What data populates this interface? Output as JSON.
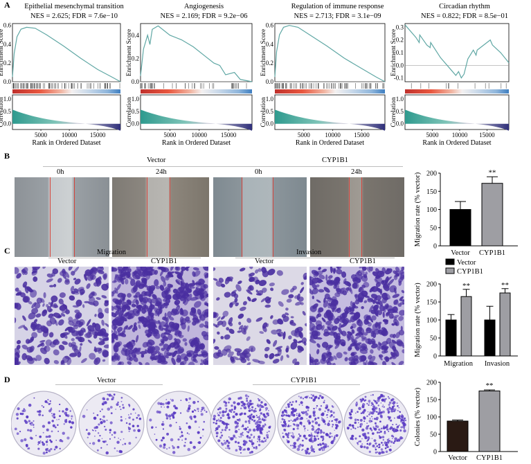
{
  "panels": {
    "A": "A",
    "B": "B",
    "C": "C",
    "D": "D"
  },
  "gsea": [
    {
      "title": "Epithelial mesenchymal transition",
      "stat": "NES = 2.625; FDR = 7.6e−10",
      "es_ticks": [
        "0.6",
        "0.4",
        "0.2",
        "0.0"
      ],
      "es_curve": [
        [
          0,
          0.05
        ],
        [
          300,
          0.3
        ],
        [
          800,
          0.48
        ],
        [
          1500,
          0.56
        ],
        [
          2500,
          0.58
        ],
        [
          4000,
          0.57
        ],
        [
          6000,
          0.5
        ],
        [
          9000,
          0.38
        ],
        [
          12000,
          0.25
        ],
        [
          15000,
          0.13
        ],
        [
          17500,
          0.05
        ],
        [
          19000,
          0.0
        ]
      ]
    },
    {
      "title": "Angiogenesis",
      "stat": "NES = 2.169; FDR = 9.2e−06",
      "es_ticks": [
        "0.4",
        "0.2",
        "0.0"
      ],
      "es_curve": [
        [
          0,
          0.05
        ],
        [
          500,
          0.28
        ],
        [
          1200,
          0.4
        ],
        [
          1600,
          0.32
        ],
        [
          2000,
          0.45
        ],
        [
          3000,
          0.48
        ],
        [
          5000,
          0.4
        ],
        [
          7000,
          0.36
        ],
        [
          9000,
          0.3
        ],
        [
          11000,
          0.22
        ],
        [
          12500,
          0.16
        ],
        [
          13500,
          0.14
        ],
        [
          14500,
          0.06
        ],
        [
          16000,
          0.08
        ],
        [
          17000,
          0.02
        ],
        [
          19000,
          0.0
        ]
      ]
    },
    {
      "title": "Regulation of immune response",
      "stat": "NES = 2.713; FDR = 3.1e−09",
      "es_ticks": [
        "0.6",
        "0.4",
        "0.2",
        "0.0"
      ],
      "es_curve": [
        [
          0,
          0.05
        ],
        [
          300,
          0.32
        ],
        [
          800,
          0.5
        ],
        [
          1500,
          0.58
        ],
        [
          2500,
          0.6
        ],
        [
          4000,
          0.58
        ],
        [
          6000,
          0.5
        ],
        [
          9000,
          0.38
        ],
        [
          12000,
          0.25
        ],
        [
          15000,
          0.14
        ],
        [
          17500,
          0.05
        ],
        [
          19000,
          0.0
        ]
      ]
    },
    {
      "title": "Circadian rhythm",
      "stat": "NES = 0.822; FDR = 8.5e−01",
      "es_ticks": [
        "0.3",
        "0.2",
        "0.1",
        "0.0",
        "-0.1"
      ],
      "es_curve": [
        [
          0,
          0.32
        ],
        [
          2000,
          0.22
        ],
        [
          2600,
          0.18
        ],
        [
          2700,
          0.24
        ],
        [
          4000,
          0.16
        ],
        [
          4600,
          0.14
        ],
        [
          4700,
          0.18
        ],
        [
          6500,
          0.06
        ],
        [
          8500,
          -0.04
        ],
        [
          9300,
          -0.08
        ],
        [
          9800,
          -0.05
        ],
        [
          10300,
          -0.1
        ],
        [
          10800,
          -0.07
        ],
        [
          11500,
          0.05
        ],
        [
          12500,
          0.12
        ],
        [
          13000,
          0.08
        ],
        [
          13200,
          0.12
        ],
        [
          15000,
          0.18
        ],
        [
          15600,
          0.2
        ],
        [
          16000,
          0.16
        ],
        [
          17500,
          0.1
        ],
        [
          19000,
          0.02
        ]
      ]
    }
  ],
  "gsea_axis": {
    "es_label": "Enrichment Score",
    "corr_label": "Correlation",
    "rank_label": "Rank in Ordered Dataset",
    "rank_ticks": [
      "5000",
      "10000",
      "15000"
    ],
    "corr_ticks": [
      "1.0",
      "0.5",
      "0.0"
    ]
  },
  "panel_b": {
    "group1": "Vector",
    "group2": "CYP1B1",
    "time1": "0h",
    "time2": "24h",
    "chart": {
      "ylabel": "Migration rate (% vector)",
      "yticks": [
        "200",
        "150",
        "100",
        "50",
        "0"
      ],
      "categories": [
        "Vector",
        "CYP1B1"
      ],
      "sig": "**"
    }
  },
  "panel_c": {
    "group1": "Migration",
    "group2": "Invasion",
    "sub1": "Vector",
    "sub2": "CYP1B1",
    "chart": {
      "ylabel": "Migration rate (% vector)",
      "yticks": [
        "200",
        "150",
        "100",
        "50",
        "0"
      ],
      "legend": [
        "Vector",
        "CYP1B1"
      ],
      "categories": [
        "Migration",
        "Invasion"
      ],
      "sig": "**"
    }
  },
  "panel_d": {
    "group1": "Vector",
    "group2": "CYP1B1",
    "chart": {
      "ylabel": "Colonies (% vector)",
      "yticks": [
        "200",
        "150",
        "100",
        "50",
        "0"
      ],
      "categories": [
        "Vector",
        "CYP1B1"
      ],
      "sig": "**"
    }
  },
  "chart_data": [
    {
      "type": "bar",
      "categories": [
        "Vector",
        "CYP1B1"
      ],
      "values": [
        100,
        172
      ],
      "errors": [
        22,
        18
      ],
      "ylabel": "Migration rate (% vector)",
      "ylim": [
        0,
        200
      ],
      "colors": [
        "#000000",
        "#9e9ea3"
      ]
    },
    {
      "type": "bar",
      "categories": [
        "Migration",
        "Invasion"
      ],
      "series": [
        {
          "name": "Vector",
          "values": [
            100,
            100
          ],
          "errors": [
            15,
            38
          ]
        },
        {
          "name": "CYP1B1",
          "values": [
            165,
            175
          ],
          "errors": [
            20,
            12
          ]
        }
      ],
      "ylabel": "Migration rate (% vector)",
      "ylim": [
        0,
        200
      ],
      "colors": [
        "#000000",
        "#9e9ea3"
      ]
    },
    {
      "type": "bar",
      "categories": [
        "Vector",
        "CYP1B1"
      ],
      "values": [
        88,
        175
      ],
      "errors": [
        3,
        3
      ],
      "ylabel": "Colonies (% vector)",
      "ylim": [
        0,
        200
      ],
      "colors": [
        "#2a1a14",
        "#9e9ea3"
      ]
    }
  ]
}
